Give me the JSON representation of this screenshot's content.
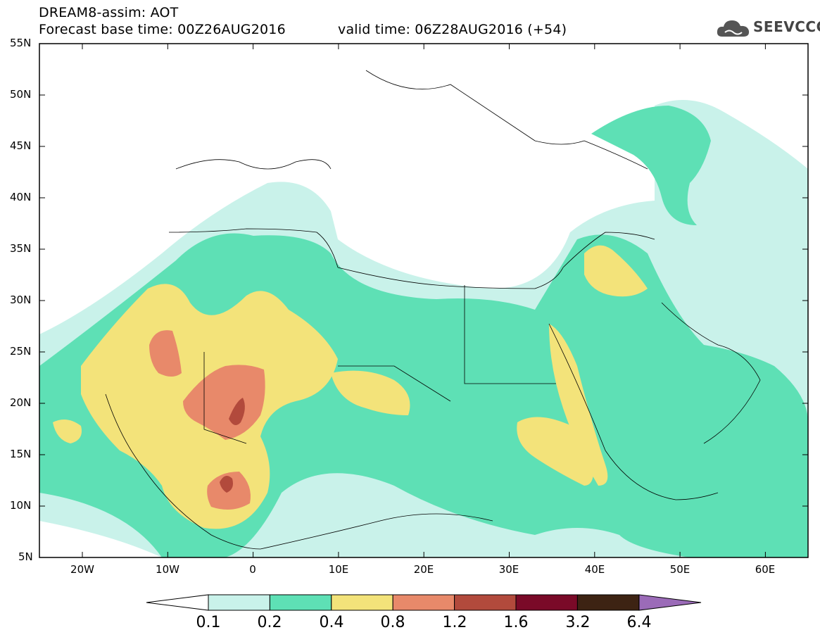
{
  "title": {
    "line1": "DREAM8-assim: AOT",
    "base": "Forecast base time: 00Z26AUG2016",
    "valid": "valid time: 06Z28AUG2016 (+54)"
  },
  "logo": {
    "text": "SEEVCCC",
    "icon": "cloud-icon"
  },
  "lat_labels": [
    "55N",
    "50N",
    "45N",
    "40N",
    "35N",
    "30N",
    "25N",
    "20N",
    "15N",
    "10N",
    "5N"
  ],
  "lon_labels": [
    "20W",
    "10W",
    "0",
    "10E",
    "20E",
    "30E",
    "40E",
    "50E",
    "60E"
  ],
  "colorbar": {
    "labels": [
      "0.1",
      "0.2",
      "0.4",
      "0.8",
      "1.2",
      "1.6",
      "3.2",
      "6.4"
    ],
    "colors": [
      "#c9f2ea",
      "#5ee0b5",
      "#f3e37a",
      "#e8896a",
      "#b24a3c",
      "#7a0a28",
      "#3d2313",
      "#9b6bb8"
    ]
  },
  "map_colors": {
    "c01": "#c9f2ea",
    "c02": "#5ee0b5",
    "c04": "#f3e37a",
    "c08": "#e8896a",
    "c12": "#b24a3c"
  }
}
